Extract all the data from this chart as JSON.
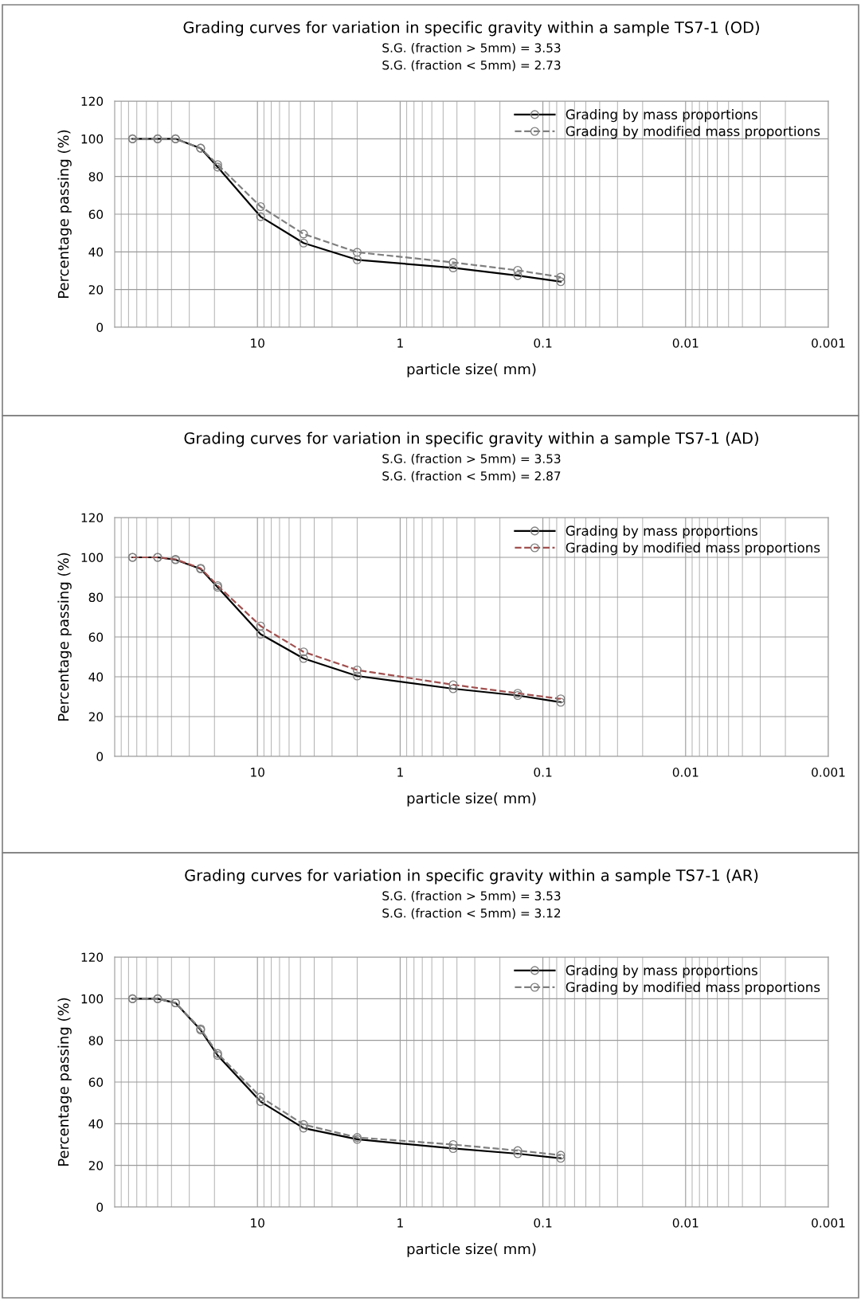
{
  "chart_data": [
    {
      "type": "line",
      "title": "Grading curves for variation in specific gravity within a sample TS7-1 (OD)",
      "subtitle": "S.G. (fraction > 5mm) = 3.53\nS.G. (fraction < 5mm) = 2.73",
      "xlabel": "particle size( mm)",
      "ylabel": "Percentage passing (%)",
      "x": [
        75,
        50,
        37.5,
        25,
        19,
        9.5,
        4.75,
        2.0,
        0.425,
        0.15,
        0.075
      ],
      "log": "x",
      "xlim": [
        100,
        0.001
      ],
      "xticks": [
        10,
        1,
        0.1,
        0.01,
        0.001
      ],
      "ylim": [
        0,
        120
      ],
      "yticks": [
        0,
        20,
        40,
        60,
        80,
        100,
        120
      ],
      "grid": true,
      "legend": "top right",
      "marker": "circle",
      "series": [
        {
          "name": "Grading by mass proportions",
          "color": "#000000",
          "line_style": "solid",
          "values": [
            100,
            100,
            100,
            95,
            85,
            58.7,
            44.7,
            35.8,
            31.5,
            27.4,
            24.2
          ]
        },
        {
          "name": "Grading by modified mass proportions",
          "color": "#7f7f7f",
          "line_style": "dashed",
          "values": [
            100,
            100,
            100,
            95,
            86.3,
            64,
            49.5,
            39.8,
            34.4,
            30.2,
            26.6
          ]
        }
      ]
    },
    {
      "type": "line",
      "title": "Grading curves for variation in specific gravity within a sample TS7-1 (AD)",
      "subtitle": "S.G. (fraction > 5mm) = 3.53\nS.G. (fraction < 5mm) = 2.87",
      "xlabel": "particle size( mm)",
      "ylabel": "Percentage passing (%)",
      "x": [
        75,
        50,
        37.5,
        25,
        19,
        9.5,
        4.75,
        2.0,
        0.425,
        0.15,
        0.075
      ],
      "log": "x",
      "xlim": [
        100,
        0.001
      ],
      "xticks": [
        10,
        1,
        0.1,
        0.01,
        0.001
      ],
      "ylim": [
        0,
        120
      ],
      "yticks": [
        0,
        20,
        40,
        60,
        80,
        100,
        120
      ],
      "grid": true,
      "legend": "top right",
      "marker": "circle",
      "series": [
        {
          "name": "Grading by mass proportions",
          "color": "#000000",
          "line_style": "solid",
          "values": [
            100,
            100,
            98.8,
            94.2,
            85,
            61.4,
            49.2,
            40.4,
            34,
            30.6,
            27.2
          ]
        },
        {
          "name": "Grading by modified mass proportions",
          "color": "#a0504f",
          "line_style": "dashed",
          "values": [
            100,
            100,
            99,
            94.5,
            85.8,
            65.5,
            52.5,
            43.4,
            36,
            31.7,
            28.9
          ]
        }
      ]
    },
    {
      "type": "line",
      "title": "Grading curves for variation in specific gravity within a sample TS7-1 (AR)",
      "subtitle": "S.G. (fraction > 5mm) = 3.53\nS.G. (fraction < 5mm) = 3.12",
      "xlabel": "particle size( mm)",
      "ylabel": "Percentage passing (%)",
      "x": [
        75,
        50,
        37.5,
        25,
        19,
        9.5,
        4.75,
        2.0,
        0.425,
        0.15,
        0.075
      ],
      "log": "x",
      "xlim": [
        100,
        0.001
      ],
      "xticks": [
        10,
        1,
        0.1,
        0.01,
        0.001
      ],
      "ylim": [
        0,
        120
      ],
      "yticks": [
        0,
        20,
        40,
        60,
        80,
        100,
        120
      ],
      "grid": true,
      "legend": "top right",
      "marker": "circle",
      "series": [
        {
          "name": "Grading by mass proportions",
          "color": "#000000",
          "line_style": "solid",
          "values": [
            100,
            100,
            98,
            85,
            72.8,
            50.6,
            37.9,
            32.5,
            28.1,
            25.6,
            23.4
          ]
        },
        {
          "name": "Grading by modified mass proportions",
          "color": "#7f7f7f",
          "line_style": "dashed",
          "values": [
            100,
            100,
            98,
            85.5,
            73.7,
            52.8,
            39.6,
            33.4,
            30,
            27.1,
            24.9
          ]
        }
      ]
    }
  ]
}
